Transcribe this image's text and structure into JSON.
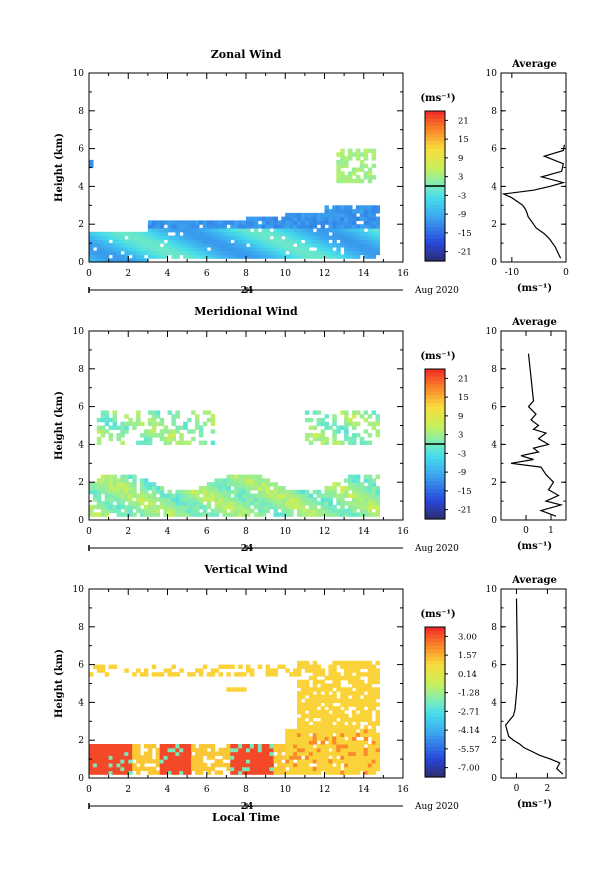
{
  "chart_data": [
    {
      "type": "heatmap",
      "title": "Zonal Wind",
      "ylabel": "Height (km)",
      "xlim": [
        0,
        16
      ],
      "ylim": [
        0,
        10
      ],
      "xticks": [
        "0",
        "2",
        "4",
        "6",
        "8",
        "10",
        "12",
        "14",
        "16"
      ],
      "yticks": [
        "0",
        "2",
        "4",
        "6",
        "8",
        "10"
      ],
      "date_tick": "24",
      "date_label": "Aug 2020",
      "colorbar": {
        "unit": "(ms⁻¹)",
        "ticks": [
          "21",
          "15",
          "9",
          "3",
          "-3",
          "-9",
          "-15",
          "-21"
        ],
        "range": [
          -24,
          24
        ]
      },
      "side_profile": {
        "title": "Average",
        "xlabel": "(ms⁻¹)",
        "xlim": [
          -12,
          0
        ],
        "xticks": [
          "-10",
          "0"
        ],
        "height": [
          0.2,
          0.5,
          0.8,
          1.2,
          1.5,
          1.8,
          2.0,
          2.2,
          2.4,
          2.6,
          2.8,
          3.0,
          3.2,
          3.4,
          3.6,
          3.8,
          4.0,
          4.2,
          4.5,
          4.8,
          5.2,
          5.6,
          5.9,
          6.2
        ],
        "values": [
          -1.0,
          -1.5,
          -2.0,
          -3.0,
          -4.0,
          -5.5,
          -6.0,
          -6.5,
          -7.0,
          -7.2,
          -7.5,
          -8.0,
          -9.0,
          -10.0,
          -11.5,
          -6.0,
          -3.0,
          -0.5,
          -4.5,
          -0.8,
          -0.5,
          -4.0,
          -0.5,
          -0.3
        ]
      }
    },
    {
      "type": "heatmap",
      "title": "Meridional Wind",
      "ylabel": "Height (km)",
      "xlim": [
        0,
        16
      ],
      "ylim": [
        0,
        10
      ],
      "xticks": [
        "0",
        "2",
        "4",
        "6",
        "8",
        "10",
        "12",
        "14",
        "16"
      ],
      "yticks": [
        "0",
        "2",
        "4",
        "6",
        "8",
        "10"
      ],
      "date_tick": "24",
      "date_label": "Aug 2020",
      "colorbar": {
        "unit": "(ms⁻¹)",
        "ticks": [
          "21",
          "15",
          "9",
          "3",
          "-3",
          "-9",
          "-15",
          "-21"
        ],
        "range": [
          -24,
          24
        ]
      },
      "side_profile": {
        "title": "Average",
        "xlabel": "(ms⁻¹)",
        "xlim": [
          -1,
          1.6
        ],
        "xticks": [
          "0",
          "1"
        ],
        "height": [
          0.2,
          0.5,
          0.8,
          1.0,
          1.3,
          1.6,
          2.0,
          2.4,
          2.8,
          3.0,
          3.2,
          3.4,
          3.6,
          3.8,
          4.0,
          4.3,
          4.6,
          4.8,
          5.0,
          5.3,
          5.6,
          6.0,
          6.3,
          8.8
        ],
        "values": [
          1.2,
          0.6,
          1.4,
          0.8,
          1.3,
          0.9,
          1.1,
          0.8,
          0.6,
          -0.6,
          0.3,
          -0.2,
          0.5,
          0.3,
          0.9,
          0.5,
          0.8,
          0.3,
          0.5,
          0.2,
          0.4,
          0.1,
          0.3,
          0.1
        ]
      }
    },
    {
      "type": "heatmap",
      "title": "Vertical Wind",
      "ylabel": "Height (km)",
      "xlabel": "Local Time",
      "xlim": [
        0,
        16
      ],
      "ylim": [
        0,
        10
      ],
      "xticks": [
        "0",
        "2",
        "4",
        "6",
        "8",
        "10",
        "12",
        "14",
        "16"
      ],
      "yticks": [
        "0",
        "2",
        "4",
        "6",
        "8",
        "10"
      ],
      "date_tick": "24",
      "date_label": "Aug 2020",
      "colorbar": {
        "unit": "(ms⁻¹)",
        "ticks": [
          "3.00",
          "1.57",
          "0.14",
          "-1.28",
          "-2.71",
          "-4.14",
          "-5.57",
          "-7.00"
        ],
        "range": [
          -7.7,
          3.7
        ]
      },
      "side_profile": {
        "title": "Average",
        "xlabel": "(ms⁻¹)",
        "xlim": [
          -1,
          3.2
        ],
        "xticks": [
          "0",
          "2"
        ],
        "height": [
          0.2,
          0.5,
          0.8,
          1.0,
          1.2,
          1.4,
          1.6,
          1.8,
          2.0,
          2.2,
          2.5,
          2.8,
          3.0,
          3.3,
          3.6,
          4.0,
          4.5,
          5.0,
          5.5,
          6.0,
          6.4,
          9.5
        ],
        "values": [
          3.0,
          2.6,
          2.8,
          2.2,
          1.5,
          1.0,
          0.5,
          0.2,
          -0.2,
          -0.5,
          -0.6,
          -0.7,
          -0.5,
          -0.2,
          -0.1,
          -0.05,
          0.0,
          0.05,
          0.05,
          0.05,
          0.05,
          0.0
        ]
      }
    }
  ]
}
